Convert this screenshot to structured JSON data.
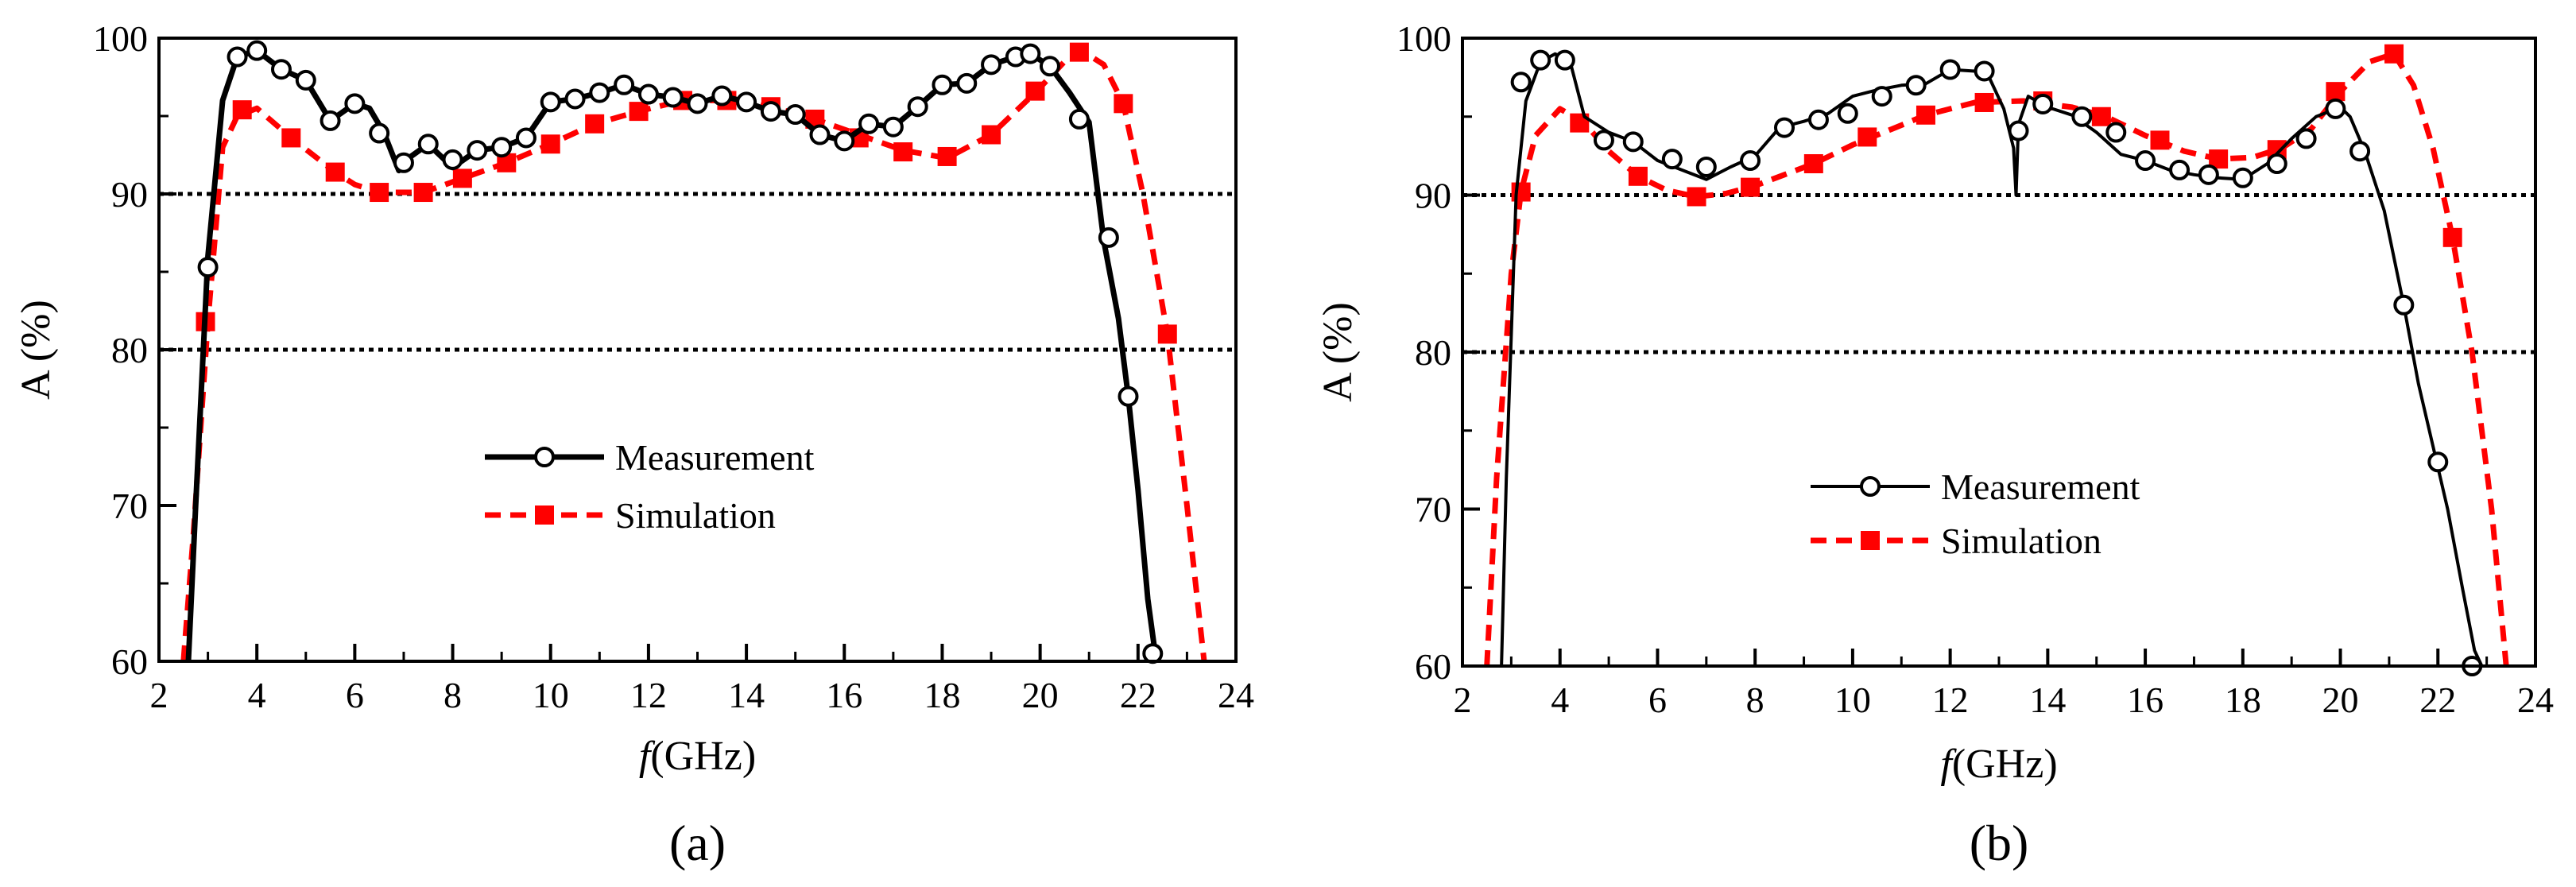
{
  "chart_data": [
    {
      "panel_label": "(a)",
      "type": "line",
      "xlabel": "f",
      "xlabel_unit": "(GHz)",
      "ylabel": "A (%)",
      "xlim": [
        2,
        24
      ],
      "ylim": [
        60,
        100
      ],
      "xticks": [
        2,
        4,
        6,
        8,
        10,
        12,
        14,
        16,
        18,
        20,
        22,
        24
      ],
      "yticks": [
        60,
        70,
        80,
        90,
        100
      ],
      "reference_lines": [
        90,
        80
      ],
      "legend": [
        "Measurement",
        "Simulation"
      ],
      "series": [
        {
          "name": "Measurement",
          "color": "#000000",
          "x": [
            2.6,
            2.75,
            3.0,
            3.3,
            3.6,
            4.0,
            4.5,
            5.0,
            5.5,
            6.0,
            6.3,
            6.6,
            6.9,
            7.1,
            7.5,
            8.0,
            8.5,
            9.0,
            9.5,
            10.0,
            10.5,
            11.0,
            11.5,
            12.0,
            12.5,
            13.0,
            13.5,
            14.0,
            14.5,
            15.0,
            15.5,
            16.0,
            16.5,
            17.0,
            17.5,
            18.0,
            18.5,
            19.0,
            19.5,
            19.8,
            20.2,
            20.6,
            21.0,
            21.3,
            21.6,
            21.8,
            22.0,
            22.2,
            22.35
          ],
          "y": [
            60,
            70,
            86,
            96,
            98.8,
            99.2,
            98.0,
            97.3,
            94.7,
            95.8,
            95.5,
            93.9,
            91.5,
            92.3,
            93.2,
            91.7,
            92.8,
            93.0,
            93.6,
            95.9,
            96.1,
            96.5,
            97.0,
            96.4,
            96.2,
            95.8,
            96.3,
            95.9,
            95.3,
            95.1,
            93.8,
            93.4,
            94.5,
            94.3,
            95.6,
            97.0,
            97.1,
            98.3,
            98.8,
            99.0,
            98.2,
            96.5,
            94.6,
            87.0,
            82.0,
            77.0,
            71.0,
            64.0,
            60.5
          ],
          "marker_x": [
            3.0,
            3.6,
            4.0,
            4.5,
            5.0,
            5.5,
            6.0,
            6.5,
            7.0,
            7.5,
            8.0,
            8.5,
            9.0,
            9.5,
            10.0,
            10.5,
            11.0,
            11.5,
            12.0,
            12.5,
            13.0,
            13.5,
            14.0,
            14.5,
            15.0,
            15.5,
            16.0,
            16.5,
            17.0,
            17.5,
            18.0,
            18.5,
            19.0,
            19.5,
            19.8,
            20.2,
            20.8,
            21.4,
            21.8,
            22.3
          ],
          "marker_y": [
            85.3,
            98.8,
            99.2,
            98.0,
            97.3,
            94.7,
            95.8,
            93.9,
            92.0,
            93.2,
            92.2,
            92.8,
            93.0,
            93.6,
            95.9,
            96.1,
            96.5,
            97.0,
            96.4,
            96.2,
            95.8,
            96.3,
            95.9,
            95.3,
            95.1,
            93.8,
            93.4,
            94.5,
            94.3,
            95.6,
            97.0,
            97.1,
            98.3,
            98.8,
            99.0,
            98.2,
            94.8,
            87.2,
            77.0,
            60.5
          ]
        },
        {
          "name": "Simulation",
          "color": "#ff0000",
          "x": [
            2.5,
            2.7,
            3.0,
            3.3,
            3.6,
            4.0,
            4.7,
            5.6,
            6.0,
            6.5,
            7.4,
            8.2,
            9.1,
            10.0,
            10.9,
            11.8,
            12.7,
            13.6,
            14.5,
            15.4,
            16.3,
            17.2,
            18.1,
            19.0,
            19.9,
            20.5,
            20.9,
            21.3,
            21.7,
            22.1,
            22.6,
            23.0,
            23.35
          ],
          "y": [
            60,
            68,
            81.8,
            93.0,
            95.0,
            95.5,
            93.6,
            91.4,
            90.6,
            90.1,
            90.1,
            91.0,
            92.0,
            93.2,
            94.5,
            95.3,
            96.0,
            96.0,
            95.6,
            94.8,
            93.8,
            92.8,
            92.3,
            93.8,
            96.5,
            98.5,
            99.1,
            98.3,
            95.8,
            90.0,
            81.0,
            70.0,
            60.0
          ],
          "marker_x": [
            2.95,
            3.7,
            4.7,
            5.6,
            6.5,
            7.4,
            8.2,
            9.1,
            10.0,
            10.9,
            11.8,
            12.7,
            13.6,
            14.5,
            15.4,
            16.3,
            17.2,
            18.1,
            19.0,
            19.9,
            20.8,
            21.7,
            22.6
          ],
          "marker_y": [
            81.8,
            95.4,
            93.6,
            91.4,
            90.1,
            90.1,
            91.0,
            92.0,
            93.2,
            94.5,
            95.3,
            96.0,
            96.0,
            95.6,
            94.8,
            93.6,
            92.7,
            92.4,
            93.8,
            96.6,
            99.1,
            95.8,
            81.0
          ]
        }
      ]
    },
    {
      "panel_label": "(b)",
      "type": "line",
      "xlabel": "f",
      "xlabel_unit": "(GHz)",
      "ylabel": "A (%)",
      "xlim": [
        2,
        24
      ],
      "ylim": [
        60,
        100
      ],
      "xticks": [
        2,
        4,
        6,
        8,
        10,
        12,
        14,
        16,
        18,
        20,
        22,
        24
      ],
      "yticks": [
        60,
        70,
        80,
        90,
        100
      ],
      "reference_lines": [
        90,
        80
      ],
      "legend": [
        "Measurement",
        "Simulation"
      ],
      "series": [
        {
          "name": "Measurement",
          "color": "#000000",
          "x": [
            2.8,
            2.9,
            3.1,
            3.3,
            3.6,
            3.9,
            4.2,
            4.5,
            5.0,
            5.5,
            6.0,
            6.5,
            7.0,
            7.5,
            8.0,
            8.5,
            9.0,
            9.5,
            10.0,
            10.5,
            11.0,
            11.5,
            12.0,
            12.5,
            12.8,
            13.1,
            13.3,
            13.35,
            13.4,
            13.6,
            14.0,
            14.5,
            15.0,
            15.5,
            16.0,
            16.5,
            17.0,
            17.5,
            18.0,
            18.5,
            19.0,
            19.5,
            20.0,
            20.2,
            20.5,
            20.9,
            21.3,
            21.6,
            21.9,
            22.2,
            22.5,
            22.75,
            22.9
          ],
          "y": [
            60,
            72,
            90,
            96,
            98.5,
            99.0,
            98.6,
            95.0,
            94.0,
            93.4,
            92.2,
            91.6,
            91.0,
            91.8,
            92.5,
            94.3,
            94.7,
            95.2,
            96.3,
            96.7,
            97.0,
            97.1,
            98.0,
            97.9,
            97.5,
            95.5,
            93.0,
            90.0,
            94.5,
            96.3,
            95.6,
            95.1,
            94.0,
            92.6,
            92.2,
            91.6,
            91.3,
            91.1,
            91.0,
            92.0,
            93.6,
            95.0,
            95.6,
            95.0,
            92.8,
            89.0,
            83.0,
            78.0,
            74.0,
            70.0,
            65.0,
            61.0,
            60.0
          ],
          "marker_x": [
            3.2,
            3.6,
            4.1,
            4.9,
            5.5,
            6.3,
            7.0,
            7.9,
            8.6,
            9.3,
            9.9,
            10.6,
            11.3,
            12.0,
            12.7,
            13.4,
            13.9,
            14.7,
            15.4,
            16.0,
            16.7,
            17.3,
            18.0,
            18.7,
            19.3,
            19.9,
            20.4,
            21.3,
            22.0,
            22.7
          ],
          "marker_y": [
            97.2,
            98.6,
            98.6,
            93.5,
            93.4,
            92.3,
            91.8,
            92.2,
            94.3,
            94.8,
            95.2,
            96.3,
            97.0,
            98.0,
            97.9,
            94.1,
            95.8,
            95.0,
            94.0,
            92.2,
            91.6,
            91.3,
            91.1,
            92.0,
            93.6,
            95.5,
            92.8,
            83.0,
            73.0,
            60.0
          ]
        },
        {
          "name": "Simulation",
          "color": "#ff0000",
          "x": [
            2.5,
            2.7,
            3.0,
            3.2,
            3.5,
            4.0,
            4.5,
            5.0,
            5.6,
            6.2,
            6.8,
            7.4,
            8.0,
            8.6,
            9.2,
            10.0,
            10.8,
            11.5,
            12.5,
            13.5,
            14.5,
            15.2,
            16.0,
            16.8,
            17.5,
            18.2,
            18.8,
            19.4,
            20.0,
            20.6,
            21.1,
            21.5,
            21.9,
            22.3,
            22.7,
            23.1,
            23.4
          ],
          "y": [
            60,
            72,
            85,
            90.2,
            93.8,
            95.5,
            94.6,
            92.8,
            91.2,
            90.3,
            89.9,
            90.1,
            90.6,
            91.3,
            92.0,
            93.2,
            94.2,
            95.1,
            95.9,
            96.0,
            95.6,
            95.0,
            93.8,
            92.8,
            92.3,
            92.4,
            93.0,
            94.2,
            96.6,
            98.5,
            99.0,
            97.0,
            93.0,
            87.3,
            80.0,
            70.0,
            60.0
          ],
          "marker_x": [
            3.2,
            4.4,
            5.6,
            6.8,
            7.9,
            9.2,
            10.3,
            11.5,
            12.7,
            13.9,
            15.1,
            16.3,
            17.5,
            18.7,
            19.9,
            21.1,
            22.3
          ],
          "marker_y": [
            90.2,
            94.6,
            91.2,
            89.9,
            90.5,
            92.0,
            93.7,
            95.1,
            95.9,
            96.0,
            95.0,
            93.5,
            92.3,
            92.9,
            96.6,
            99.0,
            87.3
          ]
        }
      ]
    }
  ]
}
